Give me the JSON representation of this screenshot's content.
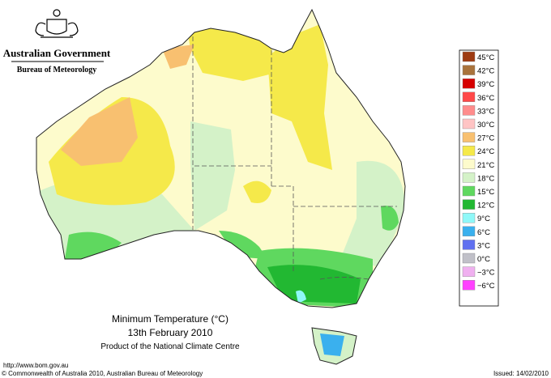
{
  "header": {
    "government": "Australian Government",
    "agency": "Bureau of Meteorology"
  },
  "legend": {
    "items": [
      {
        "label": "45°C",
        "color": "#9e3b12"
      },
      {
        "label": "42°C",
        "color": "#a9733c"
      },
      {
        "label": "39°C",
        "color": "#d60000"
      },
      {
        "label": "36°C",
        "color": "#ff4848"
      },
      {
        "label": "33°C",
        "color": "#ff8c8c"
      },
      {
        "label": "30°C",
        "color": "#ffc4c4"
      },
      {
        "label": "27°C",
        "color": "#f8c070"
      },
      {
        "label": "24°C",
        "color": "#f5e94a"
      },
      {
        "label": "21°C",
        "color": "#fdfbcc"
      },
      {
        "label": "18°C",
        "color": "#d4f2c8"
      },
      {
        "label": "15°C",
        "color": "#5fd85f"
      },
      {
        "label": "12°C",
        "color": "#22b832"
      },
      {
        "label": "9°C",
        "color": "#8ff8f8"
      },
      {
        "label": "6°C",
        "color": "#3ab0ee"
      },
      {
        "label": "3°C",
        "color": "#6070f0"
      },
      {
        "label": "0°C",
        "color": "#c0c0c8"
      },
      {
        "label": "−3°C",
        "color": "#f0b0f0"
      },
      {
        "label": "−6°C",
        "color": "#ff40ff"
      }
    ]
  },
  "caption": {
    "title": "Minimum Temperature (°C)",
    "date": "13th February 2010",
    "product": "Product of the National Climate Centre"
  },
  "footer": {
    "url": "http://www.bom.gov.au",
    "copyright": "© Commonwealth of Australia 2010, Australian Bureau of Meteorology",
    "issued": "Issued: 14/02/2010"
  }
}
